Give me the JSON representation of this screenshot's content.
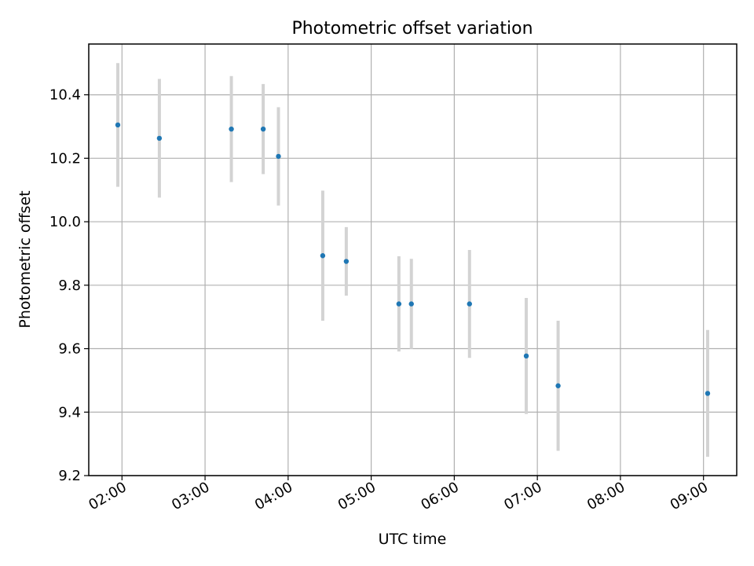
{
  "chart_data": {
    "type": "scatter",
    "title": "Photometric offset variation",
    "xlabel": "UTC time",
    "ylabel": "Photometric offset",
    "x_ticks": [
      "02:00",
      "03:00",
      "04:00",
      "05:00",
      "06:00",
      "07:00",
      "08:00",
      "09:00"
    ],
    "y_ticks": [
      "9.2",
      "9.4",
      "9.6",
      "9.8",
      "10.0",
      "10.2",
      "10.4"
    ],
    "xlim": [
      "01:36",
      "09:24"
    ],
    "ylim": [
      9.2,
      10.56
    ],
    "grid": true,
    "marker_color": "#1f77b4",
    "errorbar_color": "#d3d3d3",
    "points": [
      {
        "x": "01:57",
        "y": 10.305,
        "err": 0.195
      },
      {
        "x": "02:27",
        "y": 10.263,
        "err": 0.187
      },
      {
        "x": "03:19",
        "y": 10.292,
        "err": 0.167
      },
      {
        "x": "03:42",
        "y": 10.292,
        "err": 0.142
      },
      {
        "x": "03:53",
        "y": 10.206,
        "err": 0.155
      },
      {
        "x": "04:25",
        "y": 9.893,
        "err": 0.205
      },
      {
        "x": "04:42",
        "y": 9.875,
        "err": 0.108
      },
      {
        "x": "05:20",
        "y": 9.741,
        "err": 0.15
      },
      {
        "x": "05:29",
        "y": 9.741,
        "err": 0.142
      },
      {
        "x": "06:11",
        "y": 9.741,
        "err": 0.17
      },
      {
        "x": "06:52",
        "y": 9.577,
        "err": 0.183
      },
      {
        "x": "07:15",
        "y": 9.483,
        "err": 0.205
      },
      {
        "x": "09:03",
        "y": 9.459,
        "err": 0.2
      }
    ]
  }
}
